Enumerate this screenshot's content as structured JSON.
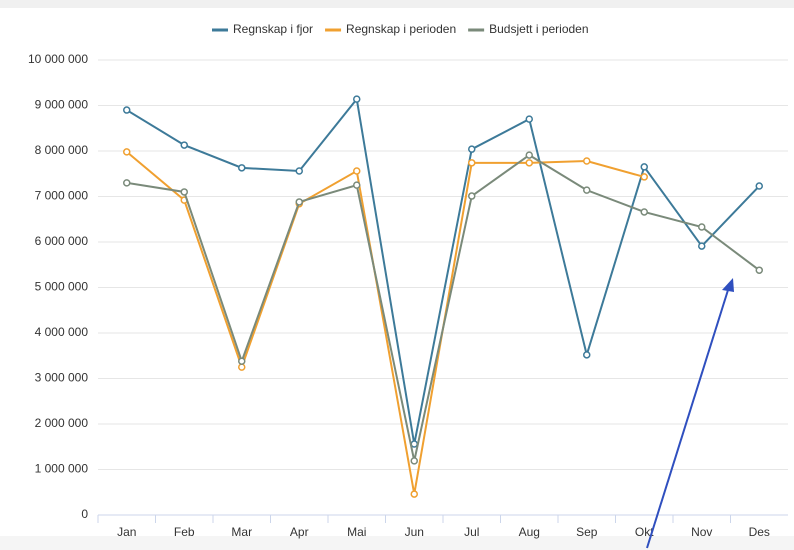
{
  "chart_data": {
    "type": "line",
    "categories": [
      "Jan",
      "Feb",
      "Mar",
      "Apr",
      "Mai",
      "Jun",
      "Jul",
      "Aug",
      "Sep",
      "Okt",
      "Nov",
      "Des"
    ],
    "series": [
      {
        "name": "Regnskap i fjor",
        "color": "#3d7a99",
        "values": [
          8900000,
          8130000,
          7630000,
          7560000,
          9140000,
          1560000,
          8040000,
          8700000,
          3520000,
          7650000,
          5910000,
          7230000
        ]
      },
      {
        "name": "Regnskap i perioden",
        "color": "#f0a030",
        "values": [
          7980000,
          6920000,
          3250000,
          6840000,
          7560000,
          460000,
          7740000,
          7740000,
          7780000,
          7430000,
          null,
          null
        ]
      },
      {
        "name": "Budsjett i perioden",
        "color": "#7a8a7a",
        "values": [
          7300000,
          7100000,
          3380000,
          6880000,
          7250000,
          1190000,
          7010000,
          7910000,
          7140000,
          6660000,
          6330000,
          5380000
        ]
      }
    ],
    "ylim": [
      0,
      10000000
    ],
    "yticks": [
      0,
      {
        "value": 1000000,
        "label": "1 000 000"
      },
      {
        "value": 2000000,
        "label": "2 000 000"
      },
      {
        "value": 3000000,
        "label": "3 000 000"
      },
      {
        "value": 4000000,
        "label": "4 000 000"
      },
      {
        "value": 5000000,
        "label": "5 000 000"
      },
      {
        "value": 6000000,
        "label": "6 000 000"
      },
      {
        "value": 7000000,
        "label": "7 000 000"
      },
      {
        "value": 8000000,
        "label": "8 000 000"
      },
      {
        "value": 9000000,
        "label": "9 000 000"
      },
      {
        "value": 10000000,
        "label": "10 000 000"
      }
    ],
    "grid": true,
    "legend": "top"
  }
}
